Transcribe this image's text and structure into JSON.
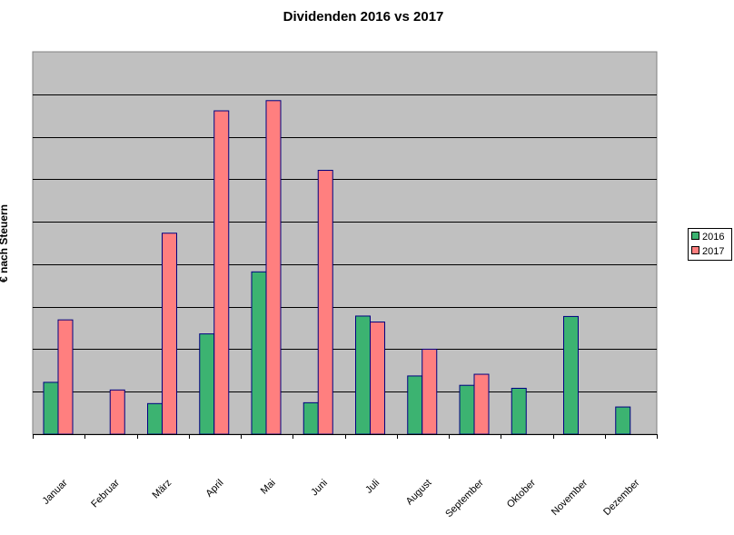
{
  "chart_data": {
    "type": "bar",
    "title": "Dividenden 2016 vs 2017",
    "xlabel": "",
    "ylabel": "€ nach Steuern",
    "categories": [
      "Januar",
      "Februar",
      "März",
      "April",
      "Mai",
      "Juni",
      "Juli",
      "August",
      "September",
      "Oktober",
      "November",
      "Dezember"
    ],
    "series": [
      {
        "name": "2016",
        "color": "#3cb371",
        "values": [
          1.22,
          0,
          0.72,
          2.36,
          3.82,
          0.74,
          2.78,
          1.37,
          1.15,
          1.08,
          2.77,
          0.64
        ]
      },
      {
        "name": "2017",
        "color": "#ff7f7f",
        "values": [
          2.69,
          1.04,
          4.73,
          7.61,
          7.85,
          6.21,
          2.64,
          2.0,
          1.41,
          0,
          0,
          0
        ]
      }
    ],
    "ylim": [
      0,
      9
    ],
    "grid": true,
    "y_tick_labels_shown": false,
    "plot_background": "#c0c0c0",
    "legend_position": "right"
  }
}
